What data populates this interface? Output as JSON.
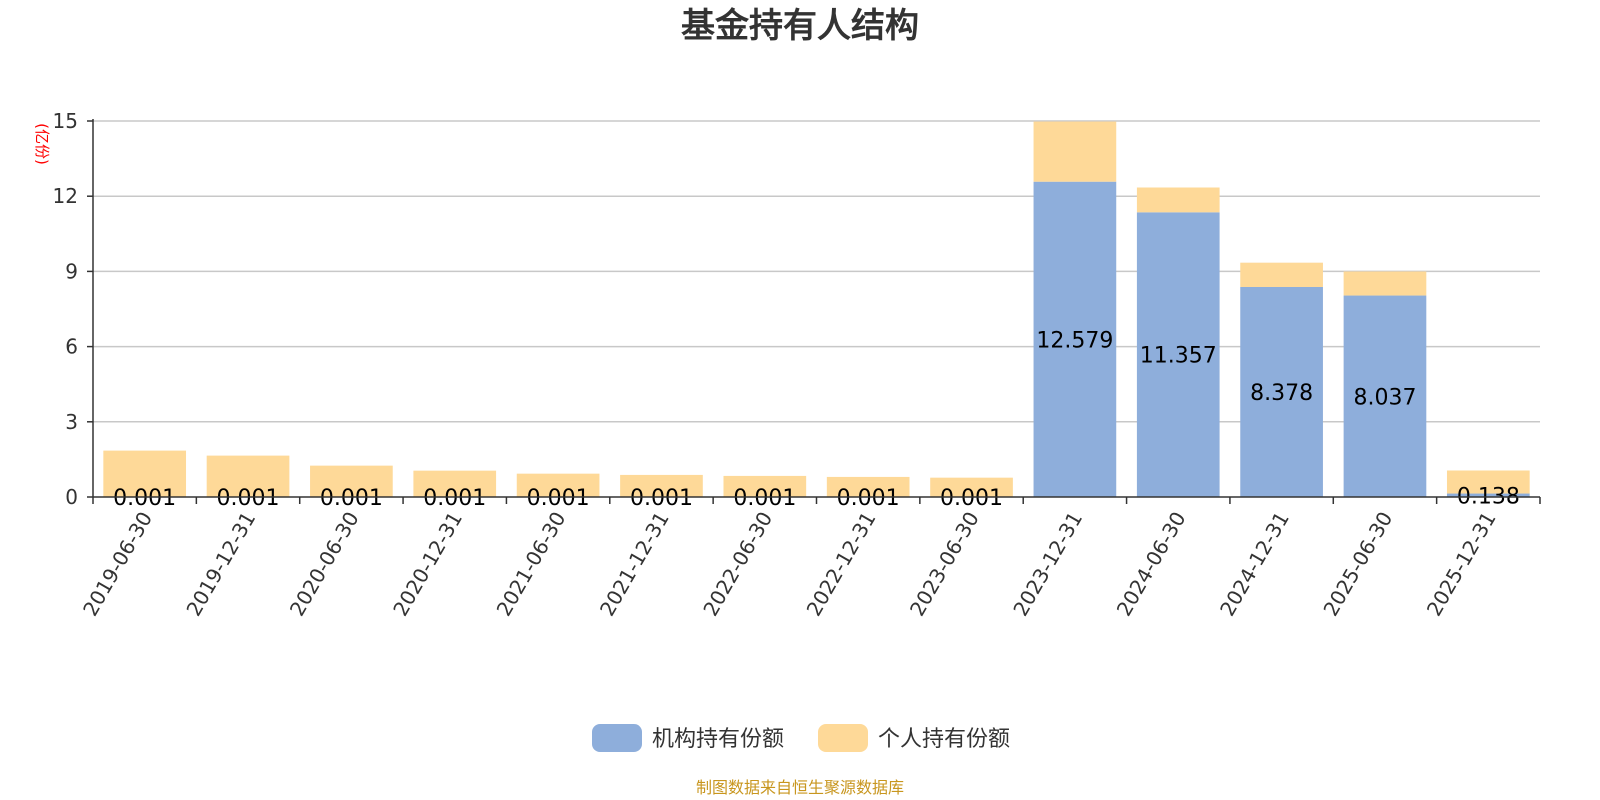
{
  "chart_data": {
    "type": "bar",
    "stacked": true,
    "title": "基金持有人结构",
    "unit_label": "(亿份)",
    "categories": [
      "2019-06-30",
      "2019-12-31",
      "2020-06-30",
      "2020-12-31",
      "2021-06-30",
      "2021-12-31",
      "2022-06-30",
      "2022-12-31",
      "2023-06-30",
      "2023-12-31",
      "2024-06-30",
      "2024-12-31",
      "2025-06-30",
      "2025-12-31"
    ],
    "series": [
      {
        "name": "机构持有份额",
        "color": "#8eaedb",
        "values": [
          0.001,
          0.001,
          0.001,
          0.001,
          0.001,
          0.001,
          0.001,
          0.001,
          0.001,
          12.579,
          11.357,
          8.378,
          8.037,
          0.138
        ],
        "labels": [
          "0.001",
          "0.001",
          "0.001",
          "0.001",
          "0.001",
          "0.001",
          "0.001",
          "0.001",
          "0.001",
          "12.579",
          "11.357",
          "8.378",
          "8.037",
          "0.138"
        ]
      },
      {
        "name": "个人持有份额",
        "color": "#fed998",
        "values": [
          1.85,
          1.65,
          1.25,
          1.05,
          0.93,
          0.88,
          0.84,
          0.8,
          0.77,
          2.4,
          0.99,
          0.97,
          0.96,
          0.92
        ]
      }
    ],
    "yticks": [
      "0",
      "3",
      "6",
      "9",
      "12",
      "15"
    ],
    "ylim": [
      0,
      15
    ],
    "grid": true,
    "legend_position": "bottom-center",
    "source": "制图数据来自恒生聚源数据库"
  }
}
